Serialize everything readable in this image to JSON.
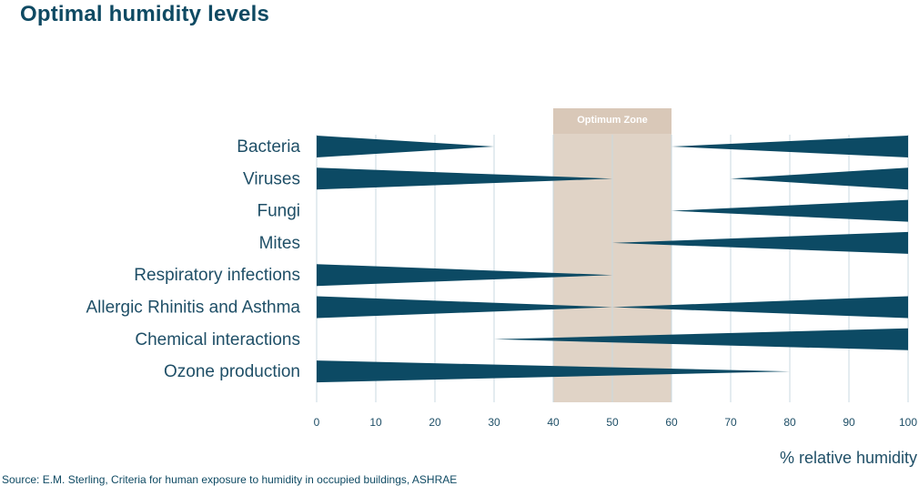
{
  "page": {
    "title": "Optimal humidity levels",
    "source": "Source: E.M. Sterling, Criteria for human exposure to humidity in occupied buildings, ASHRAE"
  },
  "colors": {
    "bar": "#0c4a64",
    "zone": "#e0d3c6",
    "zone_header": "#d9c8b8",
    "grid": "#c8d8e0",
    "text": "#1f4f67"
  },
  "chart_data": {
    "type": "bar",
    "title": "Optimal humidity levels",
    "xlabel": "% relative humidity",
    "xlim": [
      0,
      100
    ],
    "xticks": [
      "0",
      "10",
      "20",
      "30",
      "40",
      "50",
      "60",
      "70",
      "80",
      "90",
      "100"
    ],
    "optimum_zone": {
      "label": "Optimum Zone",
      "range": [
        40,
        60
      ]
    },
    "rows": [
      {
        "name": "Bacteria",
        "wedges": [
          {
            "start": 0,
            "end": 30,
            "thick_end": "start"
          },
          {
            "start": 60,
            "end": 100,
            "thick_end": "end"
          }
        ]
      },
      {
        "name": "Viruses",
        "wedges": [
          {
            "start": 0,
            "end": 50,
            "thick_end": "start"
          },
          {
            "start": 70,
            "end": 100,
            "thick_end": "end"
          }
        ]
      },
      {
        "name": "Fungi",
        "wedges": [
          {
            "start": 60,
            "end": 100,
            "thick_end": "end"
          }
        ]
      },
      {
        "name": "Mites",
        "wedges": [
          {
            "start": 50,
            "end": 100,
            "thick_end": "end"
          }
        ]
      },
      {
        "name": "Respiratory infections",
        "wedges": [
          {
            "start": 0,
            "end": 50,
            "thick_end": "start"
          }
        ]
      },
      {
        "name": "Allergic Rhinitis and Asthma",
        "wedges": [
          {
            "start": 0,
            "end": 50,
            "thick_end": "start"
          },
          {
            "start": 50,
            "end": 100,
            "thick_end": "end"
          }
        ]
      },
      {
        "name": "Chemical interactions",
        "wedges": [
          {
            "start": 30,
            "end": 100,
            "thick_end": "end"
          }
        ]
      },
      {
        "name": "Ozone production",
        "wedges": [
          {
            "start": 0,
            "end": 80,
            "thick_end": "start"
          }
        ]
      }
    ]
  }
}
